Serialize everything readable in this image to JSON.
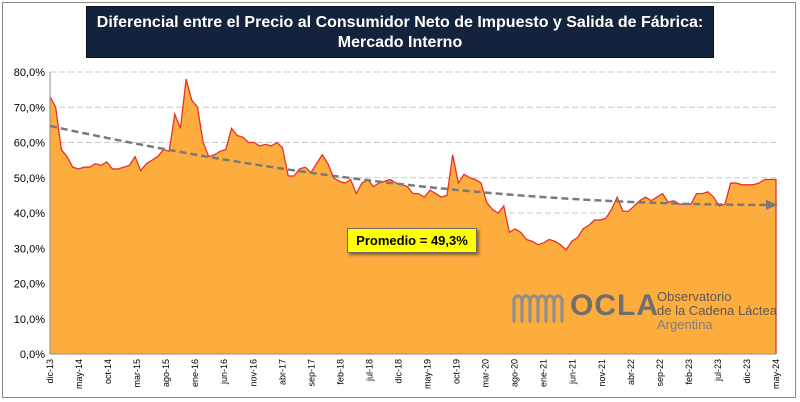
{
  "title": {
    "line1": "Diferencial entre el Precio al Consumidor Neto de Impuesto y Salida de Fábrica:",
    "line2": "Mercado Interno"
  },
  "annotation": "Promedio = 49,3%",
  "logo": {
    "brand": "OCLA",
    "line1": "Observatorio",
    "line2": "de la Cadena Láctea",
    "line3": "Argentina"
  },
  "colors": {
    "area_fill": "#fdac3e",
    "area_line": "#e8312a",
    "trend": "#7a7a7a",
    "grid": "#c8c8c8",
    "title_bg": "#14233c",
    "annotation_bg": "#ffff00"
  },
  "chart_data": {
    "type": "area",
    "title": "Diferencial entre el Precio al Consumidor Neto de Impuesto y Salida de Fábrica: Mercado Interno",
    "ylim": [
      0,
      80
    ],
    "y_ticks": [
      "0,0%",
      "10,0%",
      "20,0%",
      "30,0%",
      "40,0%",
      "50,0%",
      "60,0%",
      "70,0%",
      "80,0%"
    ],
    "y_tick_values": [
      0,
      10,
      20,
      30,
      40,
      50,
      60,
      70,
      80
    ],
    "grid": "horizontal dashed",
    "x_tick_labels": [
      "dic-13",
      "may-14",
      "oct-14",
      "mar-15",
      "ago-15",
      "ene-16",
      "jun-16",
      "nov-16",
      "abr-17",
      "sep-17",
      "feb-18",
      "jul-18",
      "dic-18",
      "may-19",
      "oct-19",
      "mar-20",
      "ago-20",
      "ene-21",
      "jun-21",
      "nov-21",
      "abr-22",
      "sep-22",
      "feb-23",
      "jul-23",
      "dic-23",
      "may-24"
    ],
    "x_start": "dic-13",
    "x_end": "may-24",
    "series": [
      {
        "type": "area",
        "values": [
          73,
          70,
          58,
          56,
          53,
          52.5,
          53,
          53,
          54,
          53.5,
          54.5,
          52.5,
          52.5,
          53,
          53.5,
          56,
          52,
          54,
          55,
          56,
          58,
          57.5,
          68,
          64,
          78,
          72,
          70,
          60,
          56,
          56.5,
          57.5,
          58,
          64,
          62,
          61.5,
          60,
          60,
          59,
          59.5,
          59,
          60,
          58.5,
          50.5,
          50.5,
          52.5,
          53,
          51.5,
          54,
          56.5,
          54,
          50,
          49,
          48.5,
          49.5,
          45.5,
          48.5,
          49.5,
          47.5,
          48.5,
          49,
          49.5,
          48.5,
          48,
          47.5,
          45.5,
          45.5,
          44.5,
          46.5,
          45.5,
          44.5,
          45,
          56.5,
          48.5,
          51,
          50,
          49.5,
          48.5,
          43,
          41,
          40,
          42,
          34.5,
          35.5,
          34.5,
          32.5,
          32,
          31,
          31.5,
          32.5,
          32,
          31,
          29.5,
          32,
          33,
          35.5,
          36.5,
          38,
          38,
          38.5,
          41,
          44.5,
          40.5,
          40.5,
          42,
          43.5,
          44.5,
          43.5,
          44.5,
          45.5,
          43,
          43.5,
          42.5,
          42.5,
          42.5,
          45.5,
          45.5,
          46,
          44.5,
          42,
          42.5,
          48.5,
          48.5,
          48,
          48,
          48,
          48.5,
          49.5,
          49.5,
          49.5
        ]
      },
      {
        "type": "trend",
        "style": "dashed",
        "start_value": 64.7,
        "end_value": 42.3
      }
    ]
  }
}
